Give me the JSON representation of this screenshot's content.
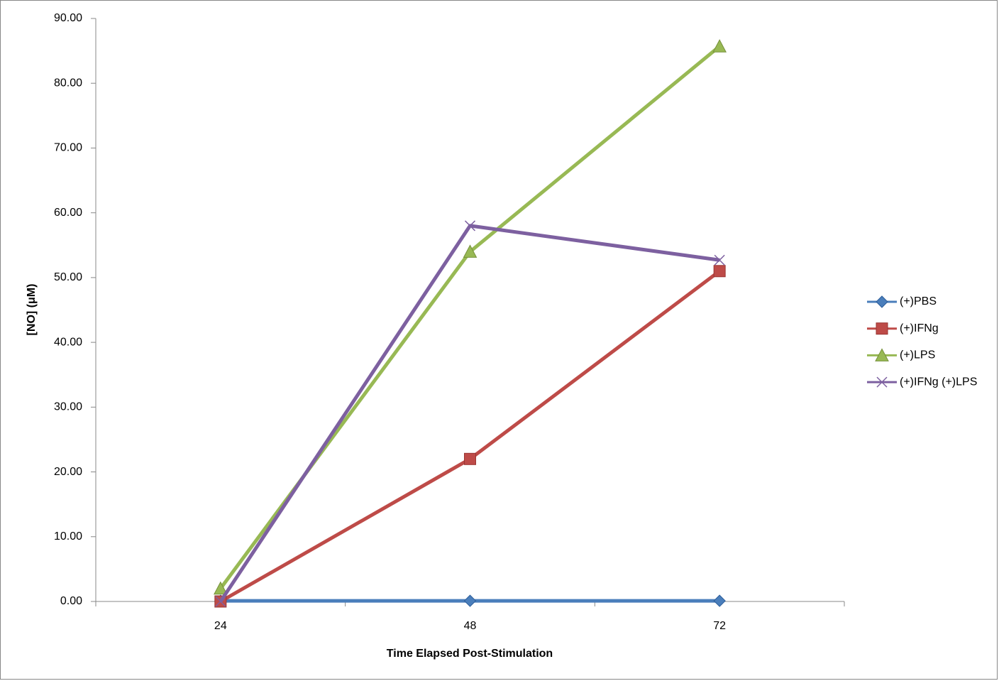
{
  "chart_data": {
    "type": "line",
    "x_label": "Time Elapsed Post-Stimulation",
    "y_label": "[NO] (μM)",
    "categories": [
      "24",
      "48",
      "72"
    ],
    "ylim": [
      0,
      90
    ],
    "yticks": [
      {
        "value": 0,
        "label": "0.00"
      },
      {
        "value": 10,
        "label": "10.00"
      },
      {
        "value": 20,
        "label": "20.00"
      },
      {
        "value": 30,
        "label": "30.00"
      },
      {
        "value": 40,
        "label": "40.00"
      },
      {
        "value": 50,
        "label": "50.00"
      },
      {
        "value": 60,
        "label": "60.00"
      },
      {
        "value": 70,
        "label": "70.00"
      },
      {
        "value": 80,
        "label": "80.00"
      },
      {
        "value": 90,
        "label": "90.00"
      }
    ],
    "grid": false,
    "legend": "right",
    "series": [
      {
        "name": "(+)PBS",
        "color": "#4a7ebb",
        "marker": "diamond",
        "values": [
          0.1,
          0.1,
          0.1
        ]
      },
      {
        "name": "(+)IFNg",
        "color": "#be4b48",
        "marker": "square",
        "values": [
          0,
          22,
          51
        ]
      },
      {
        "name": "(+)LPS",
        "color": "#98b954",
        "marker": "triangle",
        "values": [
          2,
          54,
          85.7
        ]
      },
      {
        "name": "(+)IFNg (+)LPS",
        "color": "#7d60a0",
        "marker": "x",
        "values": [
          0,
          58,
          52.7
        ]
      }
    ]
  }
}
